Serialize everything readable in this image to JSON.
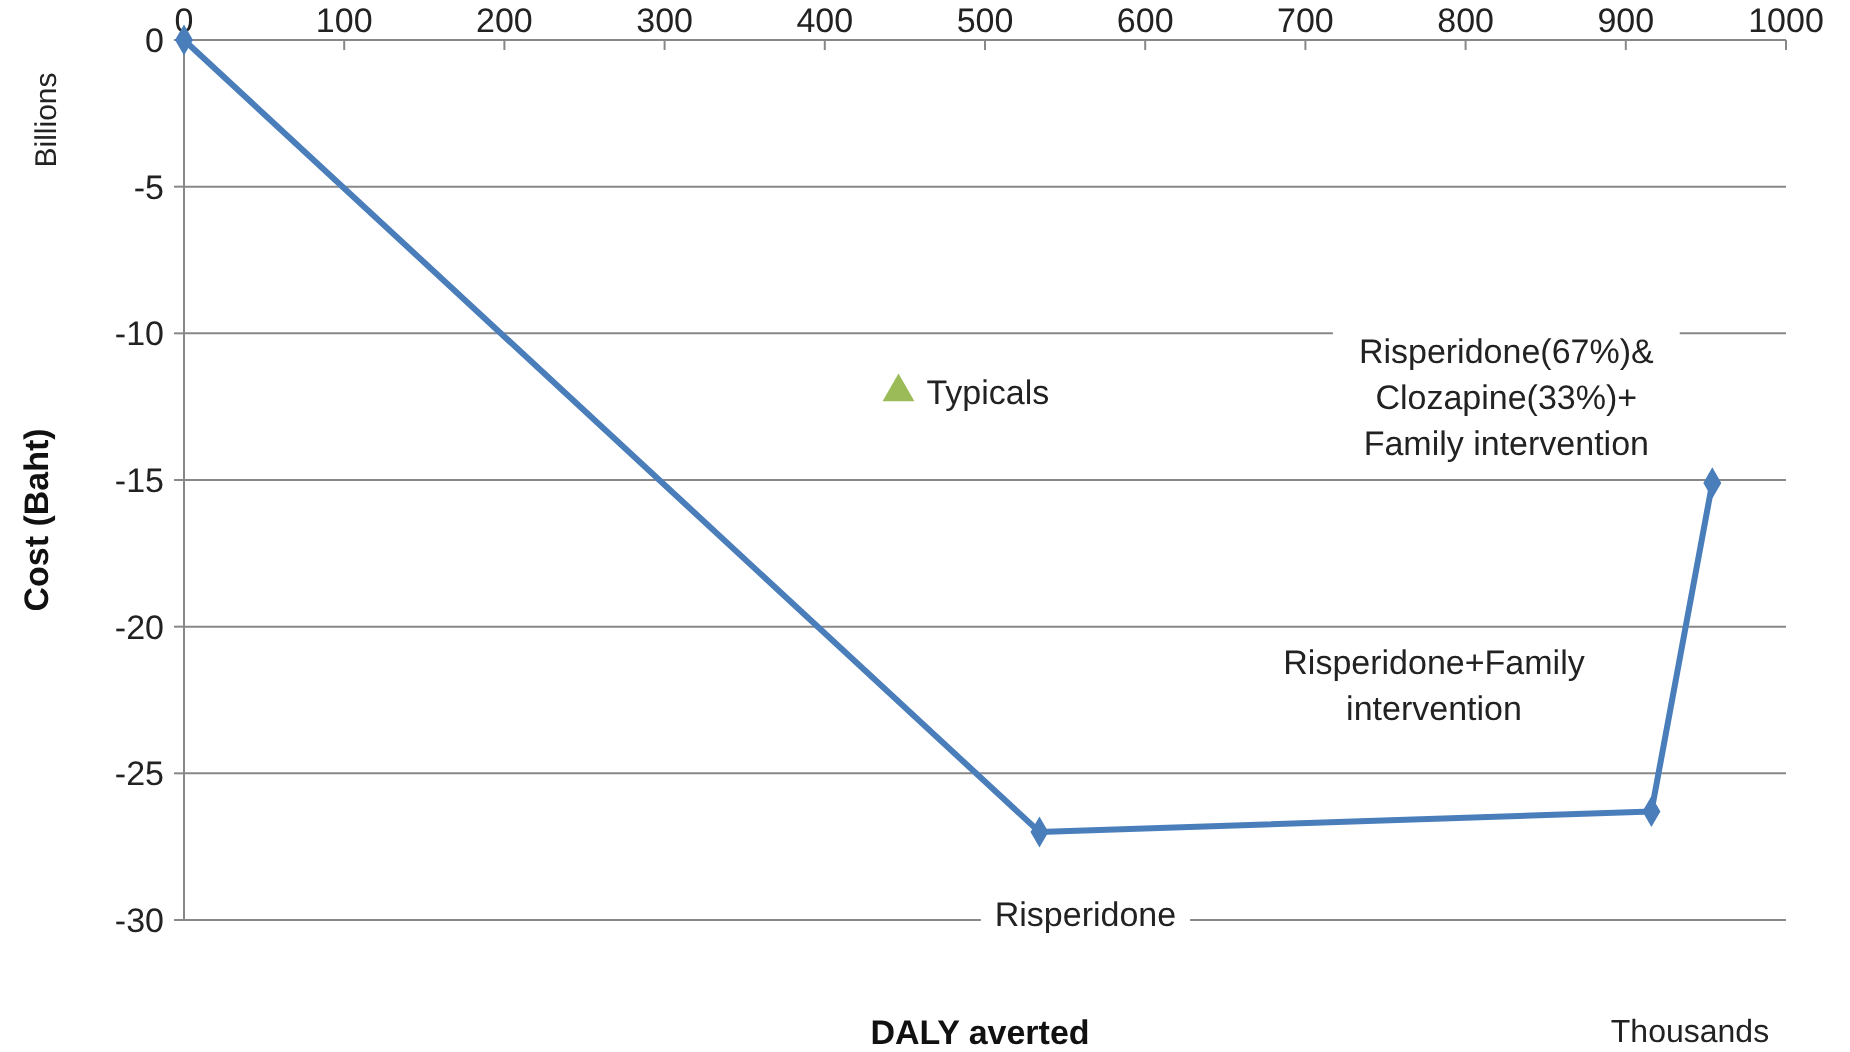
{
  "chart_data": {
    "type": "line",
    "xlabel": "DALY averted",
    "ylabel": "Cost (Baht)",
    "xlim": [
      0,
      1000
    ],
    "xticks": [
      0,
      100,
      200,
      300,
      400,
      500,
      600,
      700,
      800,
      900,
      1000
    ],
    "ylim": [
      -30,
      0
    ],
    "yticks": [
      -30,
      -25,
      -20,
      -15,
      -10,
      -5,
      0
    ],
    "grid": "y",
    "marker": "diamond",
    "line_style": "solid",
    "series": [
      {
        "color": "#4a7ebb",
        "x": [
          0,
          534,
          916,
          954
        ],
        "values": [
          0,
          -27.0,
          -26.3,
          -15.1
        ]
      },
      {
        "type": "scatter",
        "name": "Typicals",
        "color": "#9bbb59",
        "marker": "triangle",
        "x": [
          446
        ],
        "values": [
          -12.0
        ]
      }
    ],
    "annotations": [
      {
        "text": "Risperidone",
        "x": 534,
        "y": -27.0
      },
      {
        "text": "Risperidone(67%)&Clozapine(33%)+Family intervention",
        "x": 954,
        "y": -15.1
      },
      "Risperidone+Family intervention",
      "Billions",
      "Thousands"
    ]
  }
}
